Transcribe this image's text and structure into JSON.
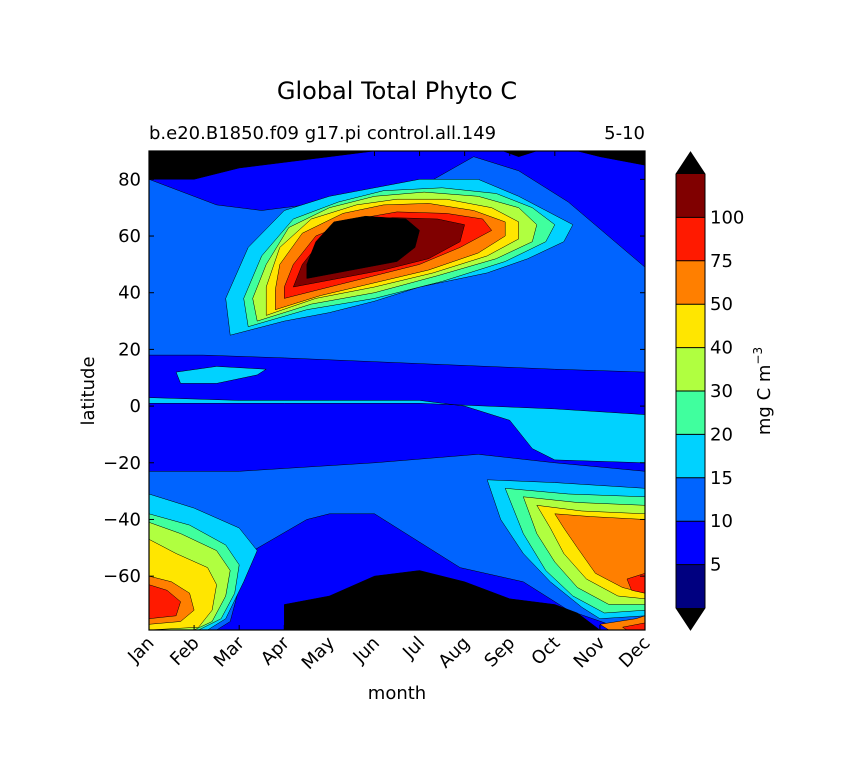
{
  "chart_data": {
    "type": "heatmap",
    "subtype": "filled-contour",
    "title": "Global Total Phyto C",
    "subtitle_left": "b.e20.B1850.f09 g17.pi control.all.149",
    "subtitle_right": "5-10",
    "xlabel": "month",
    "ylabel": "latitude",
    "x_ticks": [
      "Jan",
      "Feb",
      "Mar",
      "Apr",
      "May",
      "Jun",
      "Jul",
      "Aug",
      "Sep",
      "Oct",
      "Nov",
      "Dec"
    ],
    "xlim": [
      0,
      11
    ],
    "y_ticks": [
      80,
      60,
      40,
      20,
      0,
      -20,
      -40,
      -60
    ],
    "ylim": [
      -79,
      90
    ],
    "colorbar": {
      "label": "mg C m",
      "label_exponent": "−3",
      "levels": [
        0,
        5,
        10,
        15,
        20,
        30,
        40,
        50,
        75,
        100
      ],
      "tick_labels": [
        "5",
        "10",
        "15",
        "20",
        "30",
        "40",
        "50",
        "75",
        "100"
      ],
      "colors": [
        "#000080",
        "#0000ff",
        "#0064ff",
        "#00d2ff",
        "#40ff9e",
        "#b0ff40",
        "#ffe600",
        "#ff7f00",
        "#ff1a00",
        "#800000"
      ],
      "under_color": "#000000",
      "over_color": "#000000",
      "extend": "both"
    },
    "regions": [
      {
        "level": 0,
        "points": [
          [
            0,
            90
          ],
          [
            11,
            90
          ],
          [
            11,
            -79
          ],
          [
            0,
            -79
          ]
        ]
      },
      {
        "level": 1,
        "points": [
          [
            0,
            90
          ],
          [
            11,
            90
          ],
          [
            11,
            -79
          ],
          [
            0,
            -79
          ]
        ]
      },
      {
        "level": 2,
        "points": [
          [
            0,
            80
          ],
          [
            1.5,
            71
          ],
          [
            2.5,
            69
          ],
          [
            4,
            72
          ],
          [
            6.2,
            79
          ],
          [
            7.2,
            88
          ],
          [
            8.2,
            83
          ],
          [
            9.3,
            72
          ],
          [
            11,
            49
          ],
          [
            11,
            12
          ],
          [
            9,
            13
          ],
          [
            6,
            15
          ],
          [
            3,
            17
          ],
          [
            1.2,
            18
          ],
          [
            0,
            18
          ],
          [
            0,
            -23
          ],
          [
            2,
            -23
          ],
          [
            5,
            -20
          ],
          [
            7.3,
            -17
          ],
          [
            9,
            -20
          ],
          [
            11,
            -23
          ],
          [
            11,
            -77
          ],
          [
            10.2,
            -77
          ],
          [
            9.3,
            -72
          ],
          [
            8.3,
            -62
          ],
          [
            6.9,
            -57
          ],
          [
            5,
            -38
          ],
          [
            4,
            -38
          ],
          [
            3.5,
            -40
          ],
          [
            2.2,
            -52
          ],
          [
            1.8,
            -76
          ],
          [
            1.5,
            -79
          ],
          [
            0,
            -79
          ]
        ]
      },
      {
        "level": 3,
        "points": [
          [
            0,
            3
          ],
          [
            2,
            2
          ],
          [
            4,
            2
          ],
          [
            6,
            2
          ],
          [
            7,
            0
          ],
          [
            8,
            -5
          ],
          [
            8.5,
            -15
          ],
          [
            9,
            -19
          ],
          [
            11,
            -20
          ],
          [
            11,
            -3
          ],
          [
            9,
            -1
          ],
          [
            6,
            1
          ],
          [
            3,
            1
          ],
          [
            0,
            1
          ]
        ]
      },
      {
        "level": 3,
        "points": [
          [
            0.6,
            12
          ],
          [
            1.5,
            14
          ],
          [
            2.6,
            13
          ],
          [
            2.4,
            11
          ],
          [
            1.5,
            8
          ],
          [
            0.7,
            8
          ]
        ]
      },
      {
        "level": 3,
        "points": [
          [
            0,
            -31
          ],
          [
            1,
            -36
          ],
          [
            2,
            -43
          ],
          [
            2.4,
            -51
          ],
          [
            2.1,
            -62
          ],
          [
            1.7,
            -75
          ],
          [
            1.3,
            -79
          ],
          [
            0,
            -79
          ]
        ]
      },
      {
        "level": 3,
        "points": [
          [
            7.5,
            -26
          ],
          [
            9,
            -27
          ],
          [
            11,
            -29
          ],
          [
            11,
            -74
          ],
          [
            10,
            -75
          ],
          [
            9.6,
            -71
          ],
          [
            8.9,
            -62
          ],
          [
            8.3,
            -52
          ],
          [
            7.8,
            -40
          ]
        ]
      },
      {
        "level": 3,
        "points": [
          [
            1.8,
            25
          ],
          [
            3,
            30
          ],
          [
            4,
            33
          ],
          [
            5,
            37
          ],
          [
            6,
            42
          ],
          [
            7.5,
            47
          ],
          [
            8.4,
            52
          ],
          [
            9.2,
            58
          ],
          [
            9.4,
            64
          ],
          [
            8.8,
            69
          ],
          [
            8.2,
            74
          ],
          [
            7.3,
            80
          ],
          [
            6,
            80
          ],
          [
            5,
            77
          ],
          [
            4,
            74
          ],
          [
            3,
            69
          ],
          [
            2.2,
            56
          ],
          [
            1.7,
            38
          ]
        ]
      },
      {
        "level": 4,
        "points": [
          [
            2.2,
            28
          ],
          [
            3.5,
            34
          ],
          [
            5,
            38
          ],
          [
            6.5,
            44
          ],
          [
            7.9,
            51
          ],
          [
            8.8,
            58
          ],
          [
            9,
            64
          ],
          [
            8.5,
            70
          ],
          [
            7.7,
            75
          ],
          [
            6.5,
            77
          ],
          [
            5.2,
            76
          ],
          [
            4.2,
            72
          ],
          [
            3.2,
            66
          ],
          [
            2.5,
            53
          ],
          [
            2.1,
            38
          ]
        ]
      },
      {
        "level": 4,
        "points": [
          [
            0,
            -38
          ],
          [
            0.9,
            -42
          ],
          [
            1.7,
            -49
          ],
          [
            2,
            -56
          ],
          [
            1.9,
            -66
          ],
          [
            1.6,
            -75
          ],
          [
            1.1,
            -79
          ],
          [
            0,
            -79
          ]
        ]
      },
      {
        "level": 4,
        "points": [
          [
            7.9,
            -29
          ],
          [
            9.3,
            -31
          ],
          [
            11,
            -32
          ],
          [
            11,
            -72
          ],
          [
            10.1,
            -73
          ],
          [
            9.4,
            -67
          ],
          [
            8.8,
            -58
          ],
          [
            8.3,
            -45
          ]
        ]
      },
      {
        "level": 5,
        "points": [
          [
            2.4,
            30
          ],
          [
            3.6,
            36
          ],
          [
            5,
            40
          ],
          [
            6.4,
            46
          ],
          [
            7.7,
            52
          ],
          [
            8.5,
            58
          ],
          [
            8.6,
            64
          ],
          [
            8.2,
            70
          ],
          [
            7.3,
            74
          ],
          [
            6.1,
            75.5
          ],
          [
            5,
            74
          ],
          [
            4,
            70
          ],
          [
            3.1,
            63
          ],
          [
            2.6,
            50
          ],
          [
            2.3,
            38
          ]
        ]
      },
      {
        "level": 5,
        "points": [
          [
            0,
            -41
          ],
          [
            0.7,
            -45
          ],
          [
            1.5,
            -51
          ],
          [
            1.8,
            -58
          ],
          [
            1.7,
            -67
          ],
          [
            1.4,
            -76
          ],
          [
            1,
            -79
          ],
          [
            0,
            -79
          ]
        ]
      },
      {
        "level": 5,
        "points": [
          [
            8.3,
            -32
          ],
          [
            9.5,
            -34
          ],
          [
            11,
            -35
          ],
          [
            11,
            -70
          ],
          [
            10.2,
            -70
          ],
          [
            9.5,
            -64
          ],
          [
            9,
            -55
          ],
          [
            8.6,
            -45
          ]
        ]
      },
      {
        "level": 6,
        "points": [
          [
            2.6,
            32
          ],
          [
            3.7,
            38
          ],
          [
            5,
            42
          ],
          [
            6.3,
            47
          ],
          [
            7.5,
            53
          ],
          [
            8.2,
            59
          ],
          [
            8.2,
            65
          ],
          [
            7.6,
            70
          ],
          [
            6.6,
            73
          ],
          [
            5.5,
            73
          ],
          [
            4.6,
            71
          ],
          [
            3.6,
            66
          ],
          [
            2.9,
            56
          ],
          [
            2.6,
            42
          ]
        ]
      },
      {
        "level": 6,
        "points": [
          [
            0,
            -47
          ],
          [
            0.6,
            -52
          ],
          [
            1.3,
            -57
          ],
          [
            1.5,
            -63
          ],
          [
            1.4,
            -72
          ],
          [
            1.1,
            -78
          ],
          [
            0,
            -79
          ]
        ]
      },
      {
        "level": 6,
        "points": [
          [
            8.6,
            -35
          ],
          [
            9.6,
            -37
          ],
          [
            11,
            -38
          ],
          [
            11,
            -68
          ],
          [
            10.4,
            -67
          ],
          [
            9.7,
            -61
          ],
          [
            9.2,
            -52
          ],
          [
            8.9,
            -43
          ]
        ]
      },
      {
        "level": 7,
        "points": [
          [
            2.8,
            34
          ],
          [
            3.8,
            39
          ],
          [
            5,
            43.5
          ],
          [
            6.2,
            48
          ],
          [
            7.3,
            54
          ],
          [
            7.9,
            60
          ],
          [
            7.9,
            65
          ],
          [
            7.2,
            69
          ],
          [
            6.2,
            71.5
          ],
          [
            5.2,
            71
          ],
          [
            4.3,
            68
          ],
          [
            3.4,
            61
          ],
          [
            2.9,
            50
          ],
          [
            2.8,
            41
          ]
        ]
      },
      {
        "level": 7,
        "points": [
          [
            0,
            -60
          ],
          [
            0.5,
            -62
          ],
          [
            0.9,
            -66
          ],
          [
            1,
            -72
          ],
          [
            0.7,
            -76
          ],
          [
            0,
            -77
          ]
        ]
      },
      {
        "level": 7,
        "points": [
          [
            9,
            -38
          ],
          [
            9.8,
            -39
          ],
          [
            11,
            -40
          ],
          [
            11,
            -66
          ],
          [
            10.5,
            -64
          ],
          [
            9.9,
            -59
          ],
          [
            9.5,
            -50
          ],
          [
            9.2,
            -43
          ]
        ]
      },
      {
        "level": 7,
        "points": [
          [
            10,
            -77
          ],
          [
            10.8,
            -75
          ],
          [
            11,
            -74
          ],
          [
            11,
            -79
          ],
          [
            10.2,
            -79
          ]
        ]
      },
      {
        "level": 8,
        "points": [
          [
            3,
            38
          ],
          [
            4,
            42
          ],
          [
            5,
            46
          ],
          [
            6,
            50
          ],
          [
            6.9,
            56
          ],
          [
            7.6,
            62
          ],
          [
            7.4,
            66
          ],
          [
            6.6,
            68
          ],
          [
            5.5,
            68.5
          ],
          [
            4.6,
            66
          ],
          [
            3.7,
            60
          ],
          [
            3.2,
            50
          ],
          [
            3,
            42
          ]
        ]
      },
      {
        "level": 8,
        "points": [
          [
            0,
            -63
          ],
          [
            0.4,
            -65
          ],
          [
            0.7,
            -69
          ],
          [
            0.6,
            -74
          ],
          [
            0,
            -75
          ]
        ]
      },
      {
        "level": 8,
        "points": [
          [
            10.6,
            -61
          ],
          [
            11,
            -59
          ],
          [
            11,
            -66
          ],
          [
            10.7,
            -65
          ]
        ]
      },
      {
        "level": 8,
        "points": [
          [
            10.5,
            -78
          ],
          [
            11,
            -76.5
          ],
          [
            11,
            -79
          ],
          [
            10.6,
            -79
          ]
        ]
      },
      {
        "level": 9,
        "points": [
          [
            3.2,
            42
          ],
          [
            4.2,
            45
          ],
          [
            5.2,
            48
          ],
          [
            6.2,
            52
          ],
          [
            6.9,
            58
          ],
          [
            7,
            64
          ],
          [
            6.4,
            66
          ],
          [
            5.4,
            66.5
          ],
          [
            4.5,
            64
          ],
          [
            3.8,
            58
          ],
          [
            3.4,
            50
          ]
        ]
      },
      {
        "level": 10,
        "points": [
          [
            3.5,
            45
          ],
          [
            4.5,
            48
          ],
          [
            5.5,
            51
          ],
          [
            5.9,
            56
          ],
          [
            6,
            62
          ],
          [
            5.7,
            66
          ],
          [
            4.8,
            67
          ],
          [
            4.1,
            65
          ],
          [
            3.7,
            58
          ],
          [
            3.5,
            50
          ]
        ]
      },
      {
        "level": 10,
        "points": [
          [
            0,
            90
          ],
          [
            11,
            90
          ],
          [
            11,
            85
          ],
          [
            10,
            88
          ],
          [
            9,
            92
          ],
          [
            8.2,
            88
          ],
          [
            7.5,
            92
          ],
          [
            6,
            92
          ],
          [
            4,
            88
          ],
          [
            2,
            84
          ],
          [
            1,
            80
          ],
          [
            0,
            80
          ]
        ]
      },
      {
        "level": 10,
        "points": [
          [
            3,
            -70
          ],
          [
            4,
            -67
          ],
          [
            5,
            -60
          ],
          [
            6,
            -58
          ],
          [
            7,
            -62
          ],
          [
            8,
            -68
          ],
          [
            9,
            -70
          ],
          [
            9.5,
            -73
          ],
          [
            10,
            -79
          ],
          [
            3,
            -79
          ]
        ]
      }
    ]
  }
}
